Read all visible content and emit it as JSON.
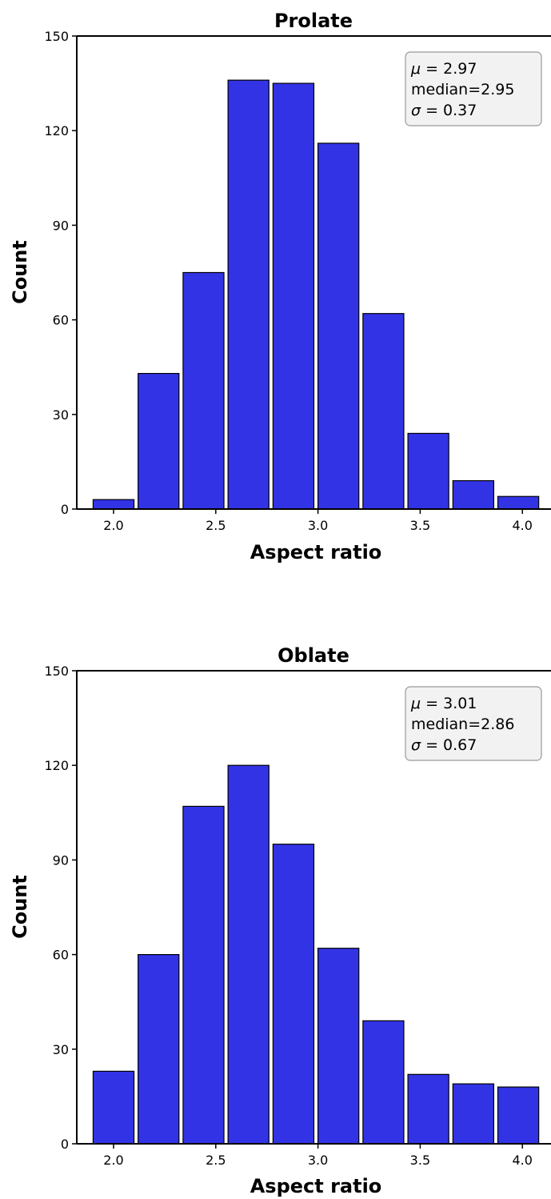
{
  "chart_data": [
    {
      "type": "bar",
      "title": "Prolate",
      "xlabel": "Aspect ratio",
      "ylabel": "Count",
      "bar_color": "#3333e6",
      "ylim": [
        0,
        150
      ],
      "xlim": [
        1.82,
        4.14
      ],
      "yticks": [
        "0",
        "30",
        "60",
        "90",
        "120",
        "150"
      ],
      "xticks": [
        "2.0",
        "2.5",
        "3.0",
        "3.5",
        "4.0"
      ],
      "bin_centers": [
        2.0,
        2.22,
        2.44,
        2.66,
        2.88,
        3.1,
        3.32,
        3.54,
        3.76,
        3.98
      ],
      "bin_width": 0.2,
      "values": [
        3,
        43,
        75,
        136,
        135,
        116,
        62,
        24,
        9,
        4
      ],
      "stats": {
        "mu": "= 2.97",
        "median": "median=2.95",
        "sigma": "= 0.37"
      }
    },
    {
      "type": "bar",
      "title": "Oblate",
      "xlabel": "Aspect ratio",
      "ylabel": "Count",
      "bar_color": "#3333e6",
      "ylim": [
        0,
        150
      ],
      "xlim": [
        1.82,
        4.14
      ],
      "yticks": [
        "0",
        "30",
        "60",
        "90",
        "120",
        "150"
      ],
      "xticks": [
        "2.0",
        "2.5",
        "3.0",
        "3.5",
        "4.0"
      ],
      "bin_centers": [
        2.0,
        2.22,
        2.44,
        2.66,
        2.88,
        3.1,
        3.32,
        3.54,
        3.76,
        3.98
      ],
      "bin_width": 0.2,
      "values": [
        23,
        60,
        107,
        120,
        95,
        62,
        39,
        22,
        19,
        18
      ],
      "stats": {
        "mu": "= 3.01",
        "median": "median=2.86",
        "sigma": "= 0.67"
      }
    }
  ]
}
